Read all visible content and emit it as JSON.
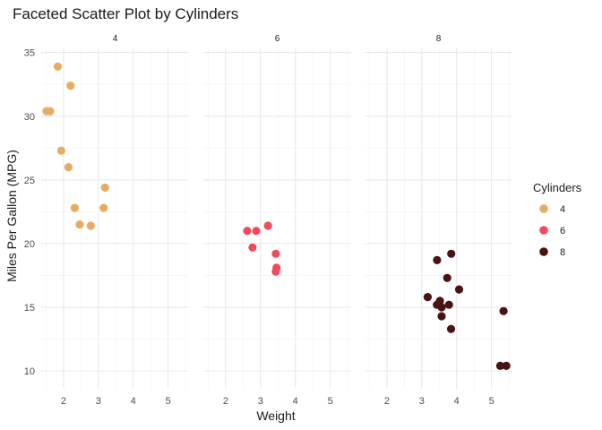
{
  "chart_data": {
    "type": "scatter",
    "title": "Faceted Scatter Plot by Cylinders",
    "xlabel": "Weight",
    "ylabel": "Miles Per Gallon (MPG)",
    "xlim": [
      1.36,
      5.6
    ],
    "ylim": [
      8.6,
      35.4
    ],
    "x_ticks": [
      2,
      3,
      4,
      5
    ],
    "y_ticks": [
      10,
      15,
      20,
      25,
      30,
      35
    ],
    "grid": true,
    "legend": {
      "title": "Cylinders",
      "position": "right"
    },
    "facets": [
      {
        "label": "4",
        "color": "#E8AB63",
        "points": [
          {
            "x": 2.32,
            "y": 22.8
          },
          {
            "x": 3.19,
            "y": 24.4
          },
          {
            "x": 3.15,
            "y": 22.8
          },
          {
            "x": 2.2,
            "y": 32.4
          },
          {
            "x": 1.615,
            "y": 30.4
          },
          {
            "x": 1.835,
            "y": 33.9
          },
          {
            "x": 2.465,
            "y": 21.5
          },
          {
            "x": 1.935,
            "y": 27.3
          },
          {
            "x": 2.14,
            "y": 26.0
          },
          {
            "x": 1.513,
            "y": 30.4
          },
          {
            "x": 2.78,
            "y": 21.4
          }
        ]
      },
      {
        "label": "6",
        "color": "#F04B5C",
        "points": [
          {
            "x": 2.62,
            "y": 21.0
          },
          {
            "x": 2.875,
            "y": 21.0
          },
          {
            "x": 3.215,
            "y": 21.4
          },
          {
            "x": 3.46,
            "y": 18.1
          },
          {
            "x": 3.44,
            "y": 19.2
          },
          {
            "x": 3.44,
            "y": 17.8
          },
          {
            "x": 2.77,
            "y": 19.7
          }
        ]
      },
      {
        "label": "8",
        "color": "#4A1212",
        "points": [
          {
            "x": 3.44,
            "y": 18.7
          },
          {
            "x": 3.57,
            "y": 14.3
          },
          {
            "x": 4.07,
            "y": 16.4
          },
          {
            "x": 3.73,
            "y": 17.3
          },
          {
            "x": 3.78,
            "y": 15.2
          },
          {
            "x": 5.25,
            "y": 10.4
          },
          {
            "x": 5.424,
            "y": 10.4
          },
          {
            "x": 5.345,
            "y": 14.7
          },
          {
            "x": 3.52,
            "y": 15.5
          },
          {
            "x": 3.435,
            "y": 15.2
          },
          {
            "x": 3.84,
            "y": 13.3
          },
          {
            "x": 3.845,
            "y": 19.2
          },
          {
            "x": 3.17,
            "y": 15.8
          },
          {
            "x": 3.57,
            "y": 15.0
          }
        ]
      }
    ]
  }
}
